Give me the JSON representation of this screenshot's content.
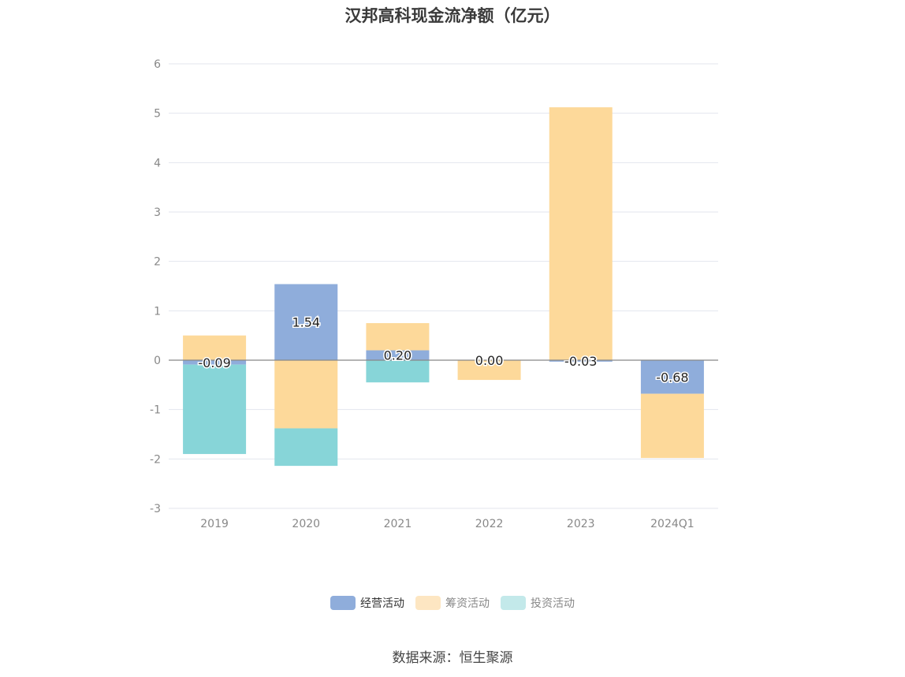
{
  "chart_data": {
    "type": "bar",
    "title": "汉邦高科现金流净额（亿元）",
    "categories": [
      "2019",
      "2020",
      "2021",
      "2022",
      "2023",
      "2024Q1"
    ],
    "ylim": [
      -3,
      6
    ],
    "yticks": [
      6,
      5,
      4,
      3,
      2,
      1,
      0,
      -1,
      -2,
      -3
    ],
    "stacked": true,
    "grid": true,
    "legend_position": "bottom",
    "series": [
      {
        "name": "经营活动",
        "color": "#8FADDB",
        "values": [
          -0.09,
          1.54,
          0.2,
          0.0,
          -0.03,
          -0.68
        ],
        "labels": [
          "-0.09",
          "1.54",
          "0.20",
          "0.00",
          "-0.03",
          "-0.68"
        ]
      },
      {
        "name": "筹资活动",
        "color": "#FDD99A",
        "values": [
          0.5,
          -1.38,
          0.55,
          -0.4,
          5.12,
          -1.3
        ]
      },
      {
        "name": "投资活动",
        "color": "#87D5D8",
        "values": [
          -1.81,
          -0.76,
          -0.45,
          0.0,
          0.0,
          0.0
        ]
      }
    ]
  },
  "legend": {
    "items": [
      {
        "label": "经营活动",
        "color": "#8FADDB"
      },
      {
        "label": "筹资活动",
        "color": "#FDE6C2"
      },
      {
        "label": "投资活动",
        "color": "#C3E9EA"
      }
    ]
  },
  "source": "数据来源：恒生聚源"
}
